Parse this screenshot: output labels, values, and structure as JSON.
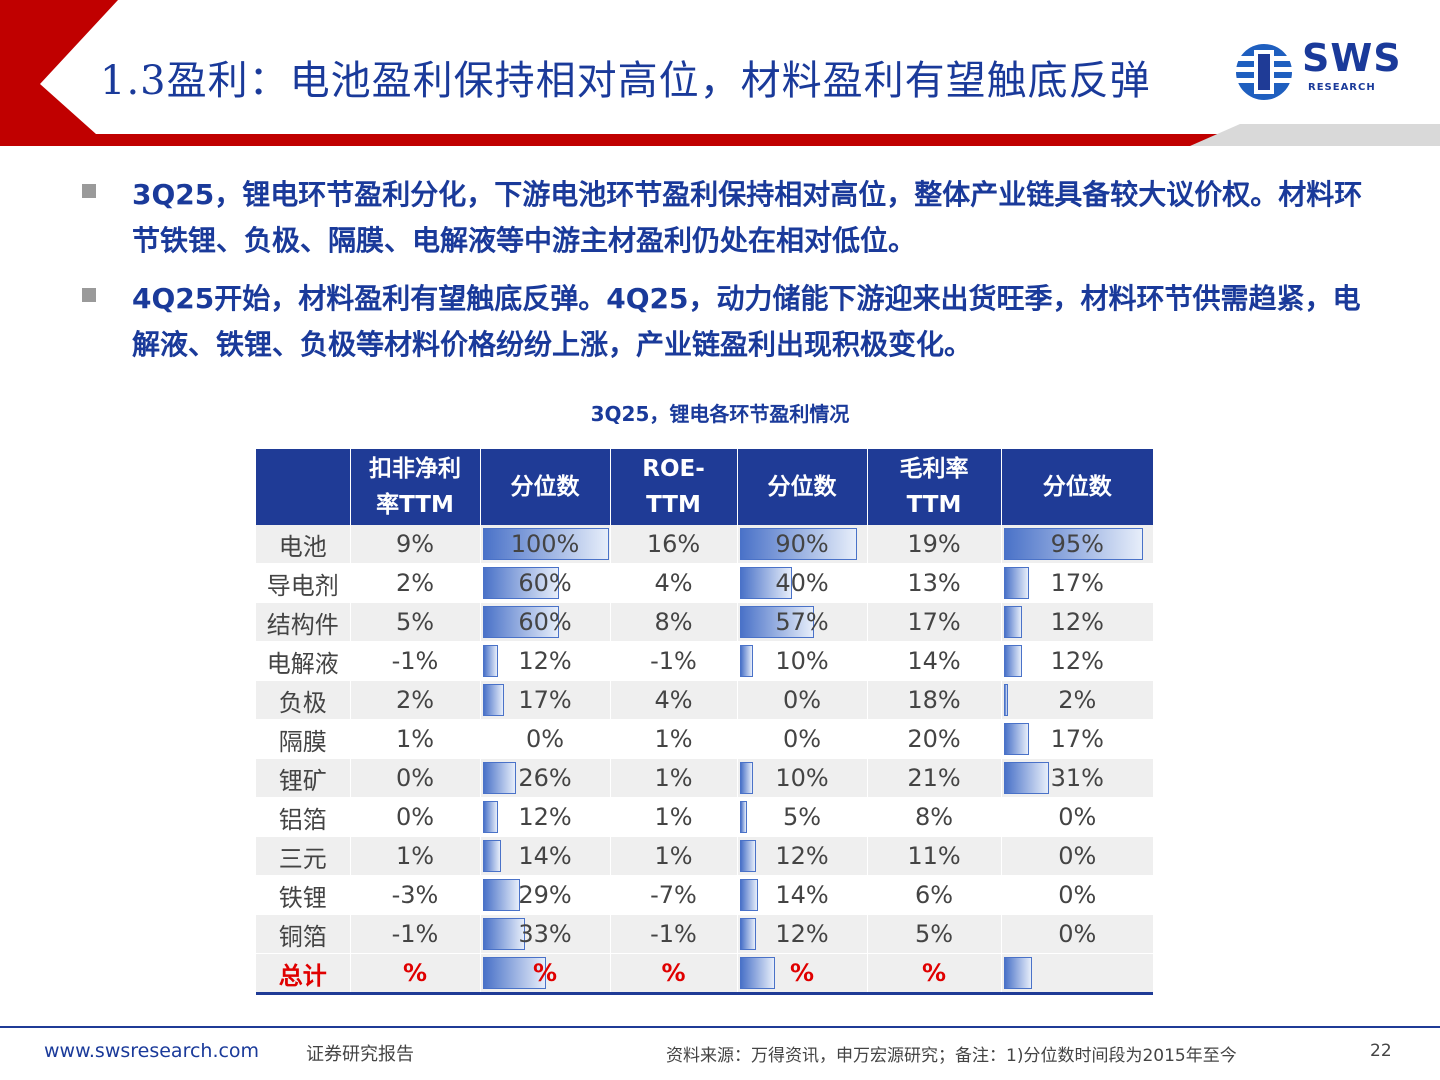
{
  "header": {
    "title": "1.3盈利：电池盈利保持相对高位，材料盈利有望触底反弹",
    "logo_text": "SWS",
    "logo_sub": "RESEARCH",
    "colors": {
      "red": "#c00000",
      "blue": "#1f3b96"
    }
  },
  "bullets": [
    {
      "text": "3Q25，锂电环节盈利分化，下游电池环节盈利保持相对高位，整体产业链具备较大议价权。材料环节铁锂、负极、隔膜、电解液等中游主材盈利仍处在相对低位。"
    },
    {
      "text": "4Q25开始，材料盈利有望触底反弹。4Q25，动力储能下游迎来出货旺季，材料环节供需趋紧，电解液、铁锂、负极等材料价格纷纷上涨，产业链盈利出现积极变化。"
    }
  ],
  "table": {
    "title": "3Q25，锂电各环节盈利情况",
    "headers": {
      "h1a": "扣非净利",
      "h1b": "率TTM",
      "h2": "分位数",
      "h3a": "ROE-",
      "h3b": "TTM",
      "h4": "分位数",
      "h5a": "毛利率",
      "h5b": "TTM",
      "h6": "分位数"
    },
    "rows": [
      {
        "name": "电池",
        "np": "9%",
        "np_pct": "100%",
        "np_pct_val": 1.0,
        "roe": "16%",
        "roe_pct": "90%",
        "roe_pct_val": 0.9,
        "gm": "19%",
        "gm_pct": "95%",
        "gm_pct_val": 0.95
      },
      {
        "name": "导电剂",
        "np": "2%",
        "np_pct": "60%",
        "np_pct_val": 0.6,
        "roe": "4%",
        "roe_pct": "40%",
        "roe_pct_val": 0.4,
        "gm": "13%",
        "gm_pct": "17%",
        "gm_pct_val": 0.17
      },
      {
        "name": "结构件",
        "np": "5%",
        "np_pct": "60%",
        "np_pct_val": 0.6,
        "roe": "8%",
        "roe_pct": "57%",
        "roe_pct_val": 0.57,
        "gm": "17%",
        "gm_pct": "12%",
        "gm_pct_val": 0.12
      },
      {
        "name": "电解液",
        "np": "-1%",
        "np_pct": "12%",
        "np_pct_val": 0.12,
        "roe": "-1%",
        "roe_pct": "10%",
        "roe_pct_val": 0.1,
        "gm": "14%",
        "gm_pct": "12%",
        "gm_pct_val": 0.12
      },
      {
        "name": "负极",
        "np": "2%",
        "np_pct": "17%",
        "np_pct_val": 0.17,
        "roe": "4%",
        "roe_pct": "0%",
        "roe_pct_val": 0.0,
        "gm": "18%",
        "gm_pct": "2%",
        "gm_pct_val": 0.02
      },
      {
        "name": "隔膜",
        "np": "1%",
        "np_pct": "0%",
        "np_pct_val": 0.0,
        "roe": "1%",
        "roe_pct": "0%",
        "roe_pct_val": 0.0,
        "gm": "20%",
        "gm_pct": "17%",
        "gm_pct_val": 0.17
      },
      {
        "name": "锂矿",
        "np": "0%",
        "np_pct": "26%",
        "np_pct_val": 0.26,
        "roe": "1%",
        "roe_pct": "10%",
        "roe_pct_val": 0.1,
        "gm": "21%",
        "gm_pct": "31%",
        "gm_pct_val": 0.31
      },
      {
        "name": "铝箔",
        "np": "0%",
        "np_pct": "12%",
        "np_pct_val": 0.12,
        "roe": "1%",
        "roe_pct": "5%",
        "roe_pct_val": 0.05,
        "gm": "8%",
        "gm_pct": "0%",
        "gm_pct_val": 0.0
      },
      {
        "name": "三元",
        "np": "1%",
        "np_pct": "14%",
        "np_pct_val": 0.14,
        "roe": "1%",
        "roe_pct": "12%",
        "roe_pct_val": 0.12,
        "gm": "11%",
        "gm_pct": "0%",
        "gm_pct_val": 0.0
      },
      {
        "name": "铁锂",
        "np": "-3%",
        "np_pct": "29%",
        "np_pct_val": 0.29,
        "roe": "-7%",
        "roe_pct": "14%",
        "roe_pct_val": 0.14,
        "gm": "6%",
        "gm_pct": "0%",
        "gm_pct_val": 0.0
      },
      {
        "name": "铜箔",
        "np": "-1%",
        "np_pct": "33%",
        "np_pct_val": 0.33,
        "roe": "-1%",
        "roe_pct": "12%",
        "roe_pct_val": 0.12,
        "gm": "5%",
        "gm_pct": "0%",
        "gm_pct_val": 0.0
      }
    ],
    "total": {
      "name": "总计",
      "np": "%",
      "np_pct": "%",
      "np_pct_val": 0.5,
      "roe": "%",
      "roe_pct": "%",
      "roe_pct_val": 0.27,
      "gm": "%",
      "gm_pct": "",
      "gm_pct_val": 0.19
    }
  },
  "footer": {
    "url": "www.swsresearch.com",
    "report": "证券研究报告",
    "source": "资料来源：万得资讯，申万宏源研究；备注：1)分位数时间段为2015年至今",
    "page": "22"
  }
}
